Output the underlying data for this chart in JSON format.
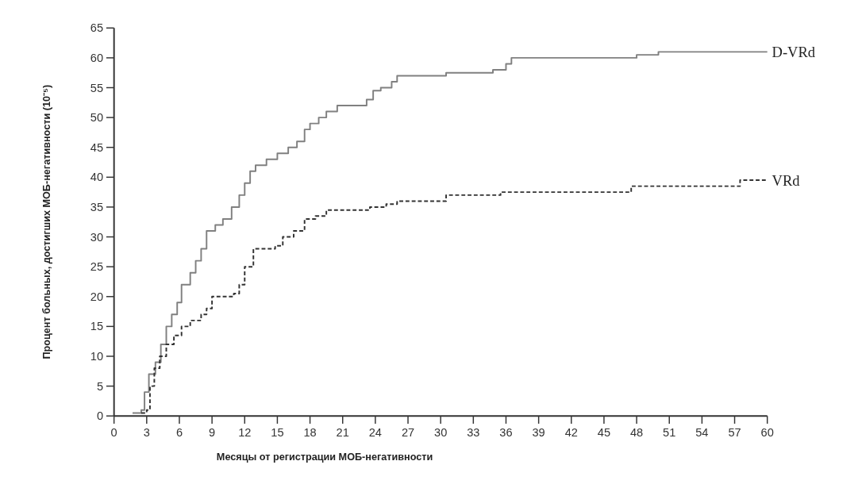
{
  "chart_data": {
    "type": "step",
    "xlabel": "Месяцы от регистрации МОБ-негативности",
    "ylabel": "Процент больных, достигших МОБ-негативности (10⁻⁵)",
    "xlim": [
      0,
      60
    ],
    "xticks": [
      0,
      3,
      6,
      9,
      12,
      15,
      18,
      21,
      24,
      27,
      30,
      33,
      36,
      39,
      42,
      45,
      48,
      51,
      54,
      57,
      60
    ],
    "ylim": [
      0,
      65
    ],
    "yticks": [
      0,
      5,
      10,
      15,
      20,
      25,
      30,
      35,
      40,
      45,
      50,
      55,
      60,
      65
    ],
    "grid": false,
    "series": [
      {
        "name": "D-VRd",
        "color": "#808080",
        "line_style": "solid",
        "x": [
          1.7,
          2.5,
          2.8,
          3.2,
          3.8,
          4.3,
          4.8,
          5.3,
          5.8,
          6.2,
          7,
          7.5,
          8,
          8.5,
          9.3,
          10,
          10.8,
          11.5,
          12,
          12.5,
          13,
          14,
          15,
          16,
          16.8,
          17.5,
          18,
          18.8,
          19.5,
          20.5,
          23.2,
          23.8,
          24.5,
          25.5,
          26,
          30.5,
          34.8,
          36,
          36.5,
          48,
          50,
          60
        ],
        "values": [
          0.5,
          1,
          4,
          7,
          9,
          12,
          15,
          17,
          19,
          22,
          24,
          26,
          28,
          31,
          32,
          33,
          35,
          37,
          39,
          41,
          42,
          43,
          44,
          45,
          46,
          48,
          49,
          50,
          51,
          52,
          53,
          54.5,
          55,
          56,
          57,
          57.5,
          58,
          59,
          60,
          60.5,
          61,
          61
        ]
      },
      {
        "name": "VRd",
        "color": "#333333",
        "line_style": "dashed",
        "x": [
          2.5,
          3,
          3.3,
          3.7,
          4.2,
          4.8,
          5.5,
          6.2,
          7,
          8,
          8.5,
          9,
          11,
          11.5,
          12,
          12.8,
          14.8,
          15.5,
          16.5,
          17.5,
          18.5,
          19.5,
          23.5,
          25,
          26,
          30.5,
          35.5,
          47.5,
          57.5,
          60
        ],
        "values": [
          0.5,
          1,
          5,
          8,
          10,
          12,
          13.5,
          15,
          16,
          17,
          18,
          20,
          20.5,
          22,
          25,
          28,
          28.5,
          30,
          31,
          33,
          33.5,
          34.5,
          35,
          35.5,
          36,
          37,
          37.5,
          38.5,
          39.5,
          39.5
        ]
      }
    ]
  }
}
